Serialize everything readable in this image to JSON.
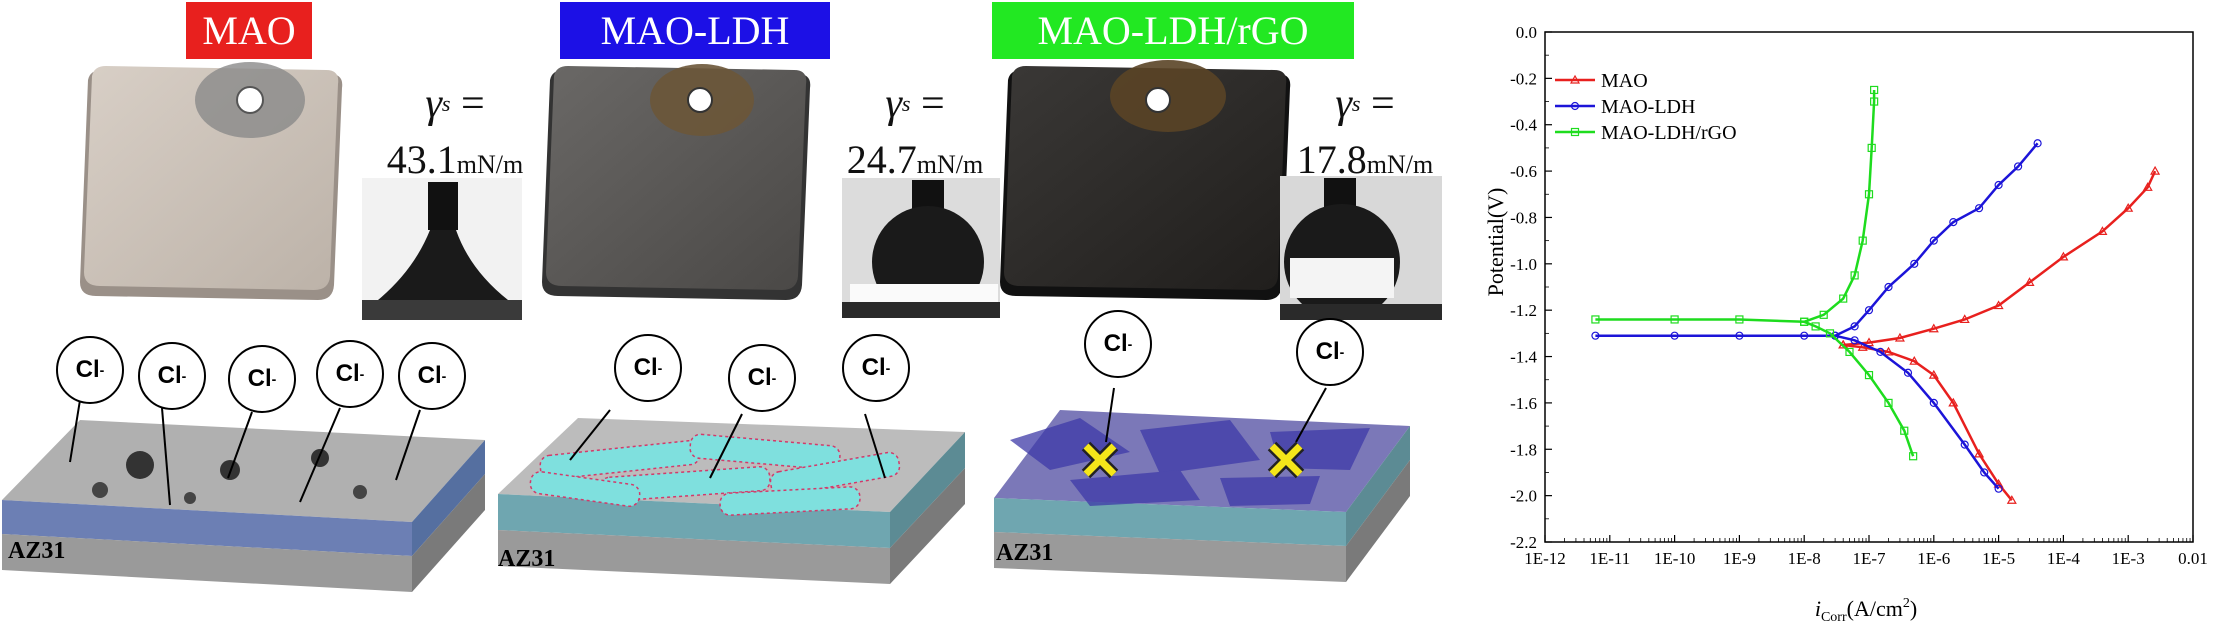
{
  "panels": [
    {
      "title": "MAO",
      "color": "#e8201e",
      "gamma_value": "43.1",
      "gamma_unit": "mN/m",
      "substrate": "AZ31"
    },
    {
      "title": "MAO-LDH",
      "color": "#1c10e6",
      "gamma_value": "24.7",
      "gamma_unit": "mN/m",
      "substrate": "AZ31"
    },
    {
      "title": "MAO-LDH/rGO",
      "color": "#22e822",
      "gamma_value": "17.8",
      "gamma_unit": "mN/m",
      "substrate": "AZ31"
    }
  ],
  "gamma_symbol": "γ",
  "gamma_sup": "s",
  "ion_label": "Cl",
  "ion_charge": "-",
  "chart_data": {
    "type": "line",
    "xlabel_italic": "i",
    "xlabel_sub": "Corr",
    "xlabel_rest": "(A/cm",
    "xlabel_sup": "2",
    "xlabel_close": ")",
    "ylabel": "Potential(V)",
    "x_scale": "log",
    "xlim": [
      1e-12,
      0.01
    ],
    "ylim": [
      -2.2,
      0.0
    ],
    "x_tick_labels": [
      "1E-12",
      "1E-11",
      "1E-10",
      "1E-9",
      "1E-8",
      "1E-7",
      "1E-6",
      "1E-5",
      "1E-4",
      "1E-3",
      "0.01"
    ],
    "y_tick_labels": [
      "0.0",
      "-0.2",
      "-0.4",
      "-0.6",
      "-0.8",
      "-1.0",
      "-1.2",
      "-1.4",
      "-1.6",
      "-1.8",
      "-2.0",
      "-2.2"
    ],
    "legend_position": "top-left",
    "series": [
      {
        "name": "MAO",
        "color": "#e8201e",
        "marker": "triangle",
        "cathodic": [
          [
            1.6e-05,
            -2.02
          ],
          [
            1e-05,
            -1.95
          ],
          [
            5e-06,
            -1.82
          ],
          [
            2e-06,
            -1.6
          ],
          [
            1e-06,
            -1.48
          ],
          [
            5e-07,
            -1.42
          ],
          [
            2e-07,
            -1.38
          ],
          [
            8e-08,
            -1.36
          ],
          [
            4e-08,
            -1.35
          ]
        ],
        "anodic": [
          [
            4e-08,
            -1.35
          ],
          [
            1e-07,
            -1.34
          ],
          [
            3e-07,
            -1.32
          ],
          [
            1e-06,
            -1.28
          ],
          [
            3e-06,
            -1.24
          ],
          [
            1e-05,
            -1.18
          ],
          [
            3e-05,
            -1.08
          ],
          [
            0.0001,
            -0.97
          ],
          [
            0.0004,
            -0.86
          ],
          [
            0.001,
            -0.76
          ],
          [
            0.002,
            -0.67
          ],
          [
            0.0026,
            -0.6
          ]
        ]
      },
      {
        "name": "MAO-LDH",
        "color": "#1c14d8",
        "marker": "circle",
        "cathodic": [
          [
            1e-05,
            -1.97
          ],
          [
            6e-06,
            -1.9
          ],
          [
            3e-06,
            -1.78
          ],
          [
            1e-06,
            -1.6
          ],
          [
            4e-07,
            -1.47
          ],
          [
            1.5e-07,
            -1.38
          ],
          [
            6e-08,
            -1.33
          ],
          [
            3e-08,
            -1.31
          ],
          [
            1e-08,
            -1.31
          ],
          [
            1e-09,
            -1.31
          ],
          [
            1e-10,
            -1.31
          ],
          [
            6e-12,
            -1.31
          ]
        ],
        "anodic": [
          [
            3e-08,
            -1.31
          ],
          [
            6e-08,
            -1.27
          ],
          [
            1e-07,
            -1.2
          ],
          [
            2e-07,
            -1.1
          ],
          [
            5e-07,
            -1.0
          ],
          [
            1e-06,
            -0.9
          ],
          [
            2e-06,
            -0.82
          ],
          [
            5e-06,
            -0.76
          ],
          [
            1e-05,
            -0.66
          ],
          [
            2e-05,
            -0.58
          ],
          [
            4e-05,
            -0.48
          ]
        ]
      },
      {
        "name": "MAO-LDH/rGO",
        "color": "#1edc1e",
        "marker": "square",
        "cathodic": [
          [
            4.8e-07,
            -1.83
          ],
          [
            3.5e-07,
            -1.72
          ],
          [
            2e-07,
            -1.6
          ],
          [
            1e-07,
            -1.48
          ],
          [
            5e-08,
            -1.38
          ],
          [
            2.5e-08,
            -1.3
          ],
          [
            1.5e-08,
            -1.27
          ],
          [
            1e-08,
            -1.25
          ],
          [
            1e-09,
            -1.24
          ],
          [
            1e-10,
            -1.24
          ],
          [
            6e-12,
            -1.24
          ]
        ],
        "anodic": [
          [
            1e-08,
            -1.25
          ],
          [
            2e-08,
            -1.22
          ],
          [
            4e-08,
            -1.15
          ],
          [
            6e-08,
            -1.05
          ],
          [
            8e-08,
            -0.9
          ],
          [
            1e-07,
            -0.7
          ],
          [
            1.1e-07,
            -0.5
          ],
          [
            1.2e-07,
            -0.3
          ],
          [
            1.2e-07,
            -0.25
          ]
        ]
      }
    ]
  }
}
